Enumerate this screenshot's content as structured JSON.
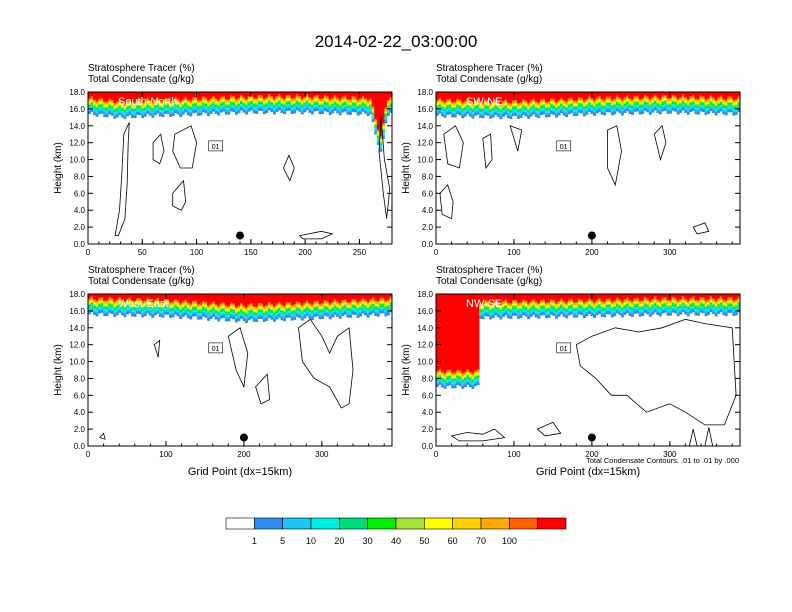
{
  "title": "2014-02-22_03:00:00",
  "footnote": "Total Condensate Contours: .01 to .01 by .000",
  "colorbar": {
    "colors": [
      "#ffffff",
      "#2d8cf0",
      "#19c8f0",
      "#00f0e6",
      "#00dc7d",
      "#00f000",
      "#a0e632",
      "#ffff00",
      "#ffd200",
      "#ffaa00",
      "#ff5f00",
      "#ff0000"
    ],
    "labels": [
      "1",
      "5",
      "10",
      "20",
      "30",
      "40",
      "50",
      "60",
      "70",
      "100"
    ]
  },
  "chart_data": [
    {
      "type": "heatmap",
      "panel": "South-North",
      "heading_1": "Stratosphere Tracer   (%)",
      "heading_2": "Total Condensate   (g/kg)",
      "ylabel": "Height (km)",
      "xlabel": "",
      "xlim": [
        0,
        280
      ],
      "ylim": [
        0,
        18
      ],
      "xticks": [
        "0",
        "50",
        "100",
        "150",
        "200",
        "250"
      ],
      "yticks": [
        "0.0",
        "2.0",
        "4.0",
        "6.0",
        "8.0",
        "10.0",
        "12.0",
        "14.0",
        "16.0",
        "18.0"
      ],
      "contour_label": "01",
      "tracer_base_km": [
        [
          0,
          15.4
        ],
        [
          30,
          15.0
        ],
        [
          60,
          15.2
        ],
        [
          110,
          15.4
        ],
        [
          150,
          15.6
        ],
        [
          200,
          15.6
        ],
        [
          260,
          15.4
        ],
        [
          265,
          13.0
        ],
        [
          270,
          10.5
        ],
        [
          275,
          15.3
        ],
        [
          280,
          15.3
        ]
      ],
      "marker": [
        140,
        1.0
      ]
    },
    {
      "type": "heatmap",
      "panel": "SW-NE",
      "heading_1": "Stratosphere Tracer   (%)",
      "heading_2": "Total Condensate   (g/kg)",
      "ylabel": "Height (km)",
      "xlabel": "",
      "xlim": [
        0,
        390
      ],
      "ylim": [
        0,
        18
      ],
      "xticks": [
        "0",
        "100",
        "200",
        "300"
      ],
      "yticks": [
        "0.0",
        "2.0",
        "4.0",
        "6.0",
        "8.0",
        "10.0",
        "12.0",
        "14.0",
        "16.0",
        "18.0"
      ],
      "contour_label": "01",
      "tracer_base_km": [
        [
          0,
          15.2
        ],
        [
          100,
          15.0
        ],
        [
          200,
          15.4
        ],
        [
          300,
          15.6
        ],
        [
          390,
          15.4
        ]
      ],
      "marker": [
        200,
        1.0
      ]
    },
    {
      "type": "heatmap",
      "panel": "West-East",
      "heading_1": "Stratosphere Tracer   (%)",
      "heading_2": "Total Condensate   (g/kg)",
      "ylabel": "Height (km)",
      "xlabel": "Grid Point (dx=15km)",
      "xlim": [
        0,
        390
      ],
      "ylim": [
        0,
        18
      ],
      "xticks": [
        "0",
        "100",
        "200",
        "300"
      ],
      "yticks": [
        "0.0",
        "2.0",
        "4.0",
        "6.0",
        "8.0",
        "10.0",
        "12.0",
        "14.0",
        "16.0",
        "18.0"
      ],
      "contour_label": "01",
      "tracer_base_km": [
        [
          0,
          15.6
        ],
        [
          100,
          15.4
        ],
        [
          200,
          14.8
        ],
        [
          300,
          15.2
        ],
        [
          390,
          15.6
        ]
      ],
      "marker": [
        200,
        1.0
      ]
    },
    {
      "type": "heatmap",
      "panel": "NW-SE",
      "heading_1": "Stratosphere Tracer   (%)",
      "heading_2": "Total Condensate   (g/kg)",
      "ylabel": "Height (km)",
      "xlabel": "Grid Point (dx=15km)",
      "xlim": [
        0,
        390
      ],
      "ylim": [
        0,
        18
      ],
      "xticks": [
        "0",
        "100",
        "200",
        "300"
      ],
      "yticks": [
        "0.0",
        "2.0",
        "4.0",
        "6.0",
        "8.0",
        "10.0",
        "12.0",
        "14.0",
        "16.0",
        "18.0"
      ],
      "contour_label": "01",
      "tracer_base_km": [
        [
          0,
          7.0
        ],
        [
          55,
          7.0
        ],
        [
          56,
          15.2
        ],
        [
          200,
          15.4
        ],
        [
          300,
          15.6
        ],
        [
          390,
          15.6
        ]
      ],
      "marker": [
        200,
        1.0
      ]
    }
  ]
}
